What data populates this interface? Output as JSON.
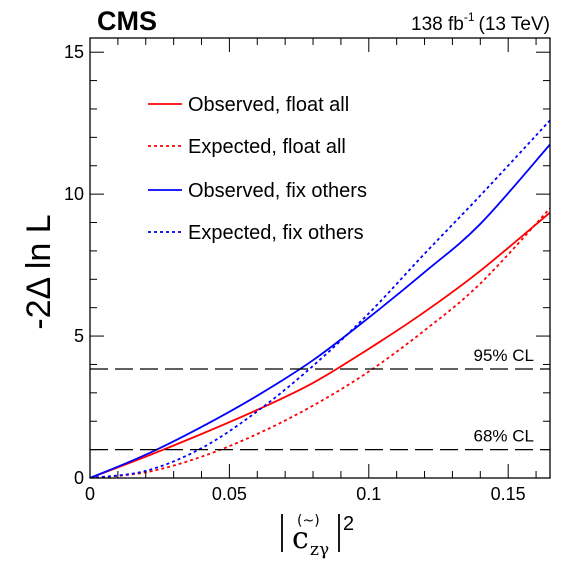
{
  "chart_data": {
    "type": "line",
    "experiment": "CMS",
    "luminosity": {
      "value": "138 fb",
      "exponent": "-1",
      "energy": "(13 TeV)"
    },
    "xlabel": {
      "base": "c",
      "tilde": "(~)",
      "subscript": "zγ",
      "power": "2"
    },
    "ylabel": "-2Δ ln L",
    "xlim": [
      0,
      0.165
    ],
    "ylim": [
      0,
      15.5
    ],
    "xticks": [
      {
        "value": 0,
        "label": "0"
      },
      {
        "value": 0.05,
        "label": "0.05"
      },
      {
        "value": 0.1,
        "label": "0.1"
      },
      {
        "value": 0.15,
        "label": "0.15"
      }
    ],
    "yticks": [
      {
        "value": 0,
        "label": "0"
      },
      {
        "value": 5,
        "label": "5"
      },
      {
        "value": 10,
        "label": "10"
      },
      {
        "value": 15,
        "label": "15"
      }
    ],
    "x": [
      0,
      0.02,
      0.04,
      0.06,
      0.08,
      0.1,
      0.12,
      0.14,
      0.165
    ],
    "series": [
      {
        "name": "Observed, float all",
        "color": "#ff0000",
        "style": "solid",
        "values": [
          0,
          0.75,
          1.55,
          2.4,
          3.35,
          4.55,
          5.85,
          7.3,
          9.35
        ]
      },
      {
        "name": "Expected, float all",
        "color": "#ff0000",
        "style": "dotted",
        "values": [
          0,
          0.2,
          0.75,
          1.55,
          2.55,
          3.75,
          5.2,
          6.85,
          9.5
        ]
      },
      {
        "name": "Observed, fix others",
        "color": "#0000ff",
        "style": "solid",
        "values": [
          0,
          0.82,
          1.8,
          2.9,
          4.15,
          5.65,
          7.25,
          8.95,
          11.75
        ]
      },
      {
        "name": "Expected, fix others",
        "color": "#0000ff",
        "style": "dotted",
        "values": [
          0,
          0.25,
          1.05,
          2.35,
          3.95,
          5.8,
          7.9,
          9.95,
          12.6
        ]
      }
    ],
    "reference_lines": [
      {
        "y": 1.0,
        "label": "68% CL"
      },
      {
        "y": 3.84,
        "label": "95% CL"
      }
    ],
    "legend_placement": "top-left"
  }
}
